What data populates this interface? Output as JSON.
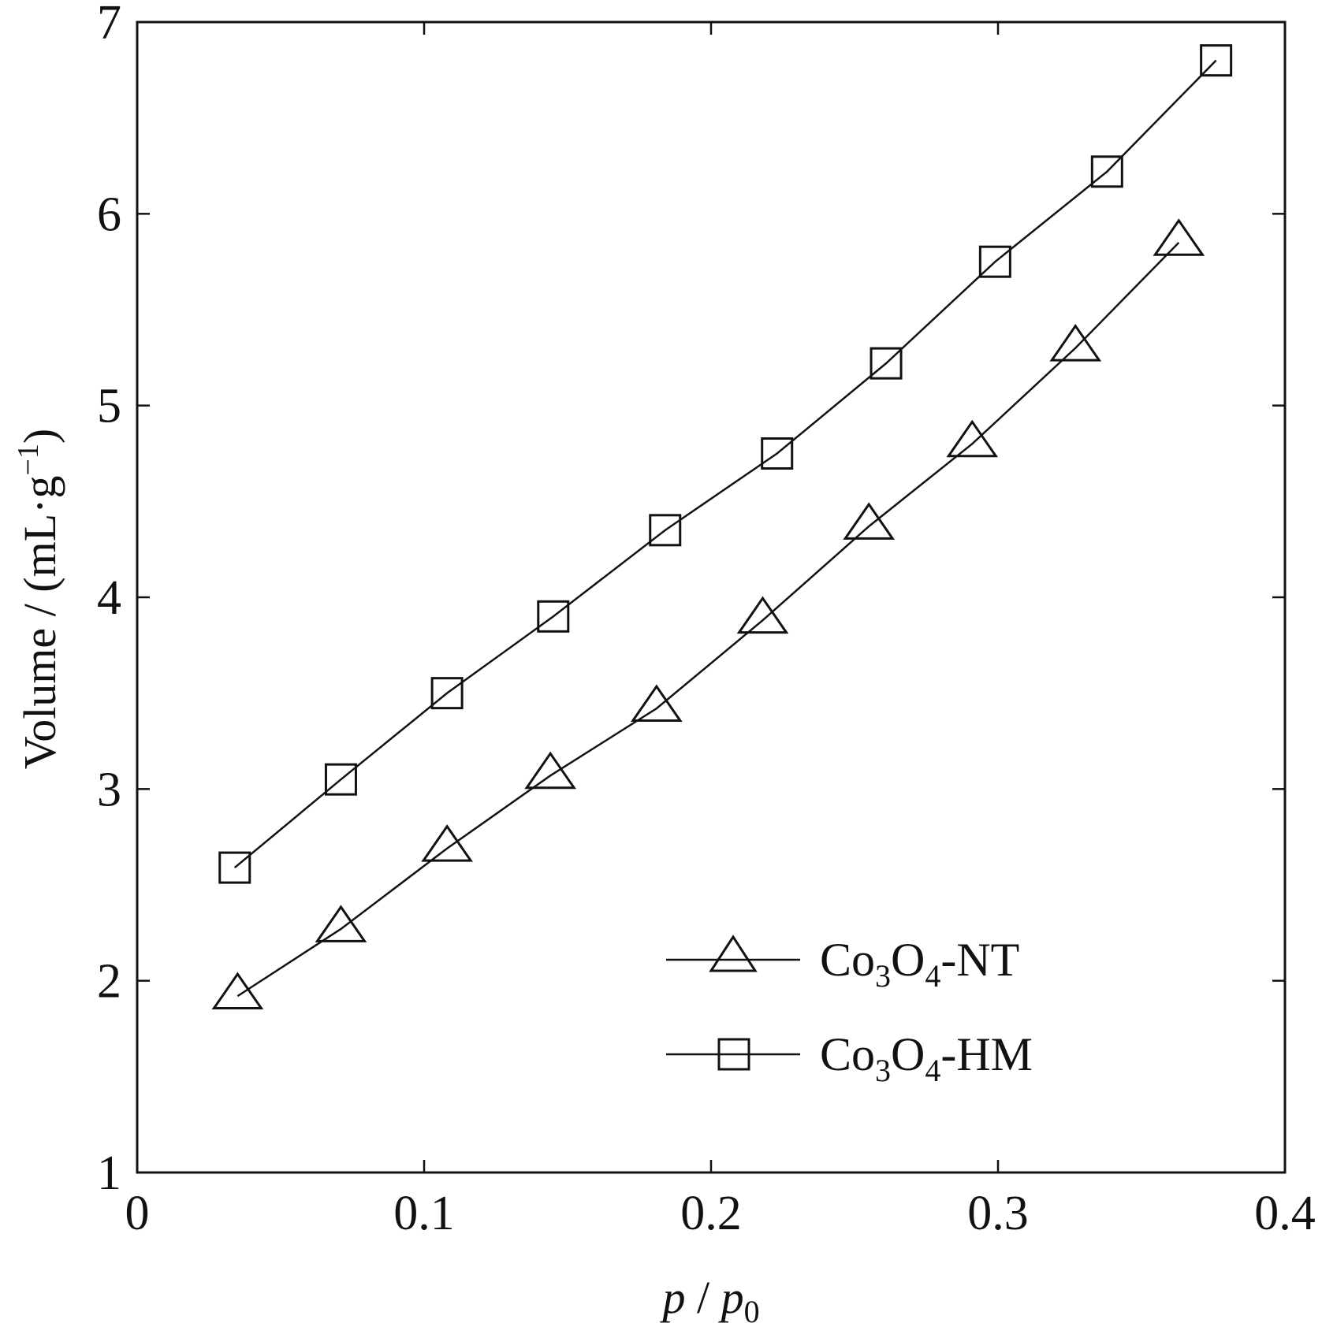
{
  "chart_data": {
    "type": "line",
    "xlabel": {
      "italic_main": "p",
      "separator": " / ",
      "italic_sub_base": "p",
      "subscript": "0"
    },
    "ylabel": {
      "prefix": "Volume / (mL·g",
      "superscript": "−1",
      "suffix": ")"
    },
    "xlim": [
      0,
      0.4
    ],
    "ylim": [
      1,
      7
    ],
    "x_ticks": [
      0,
      0.1,
      0.2,
      0.3,
      0.4
    ],
    "x_tick_labels": [
      "0",
      "0.1",
      "0.2",
      "0.3",
      "0.4"
    ],
    "y_ticks": [
      1,
      2,
      3,
      4,
      5,
      6,
      7
    ],
    "y_tick_labels": [
      "1",
      "2",
      "3",
      "4",
      "5",
      "6",
      "7"
    ],
    "grid": false,
    "legend_position": "bottom-right",
    "series": [
      {
        "name": "Co3O4-NT",
        "label_parts": {
          "base": "Co",
          "sub1": "3",
          "mid": "O",
          "sub2": "4",
          "suffix": "-NT"
        },
        "marker": "triangle",
        "color": "#111111",
        "x": [
          0.035,
          0.071,
          0.108,
          0.144,
          0.181,
          0.218,
          0.255,
          0.291,
          0.327,
          0.363
        ],
        "y": [
          1.92,
          2.27,
          2.69,
          3.07,
          3.42,
          3.88,
          4.37,
          4.8,
          5.3,
          5.85
        ]
      },
      {
        "name": "Co3O4-HM",
        "label_parts": {
          "base": "Co",
          "sub1": "3",
          "mid": "O",
          "sub2": "4",
          "suffix": "-HM"
        },
        "marker": "square",
        "color": "#111111",
        "x": [
          0.034,
          0.071,
          0.108,
          0.145,
          0.184,
          0.223,
          0.261,
          0.299,
          0.338,
          0.376
        ],
        "y": [
          2.59,
          3.05,
          3.5,
          3.9,
          4.35,
          4.75,
          5.22,
          5.75,
          6.22,
          6.8
        ]
      }
    ]
  }
}
